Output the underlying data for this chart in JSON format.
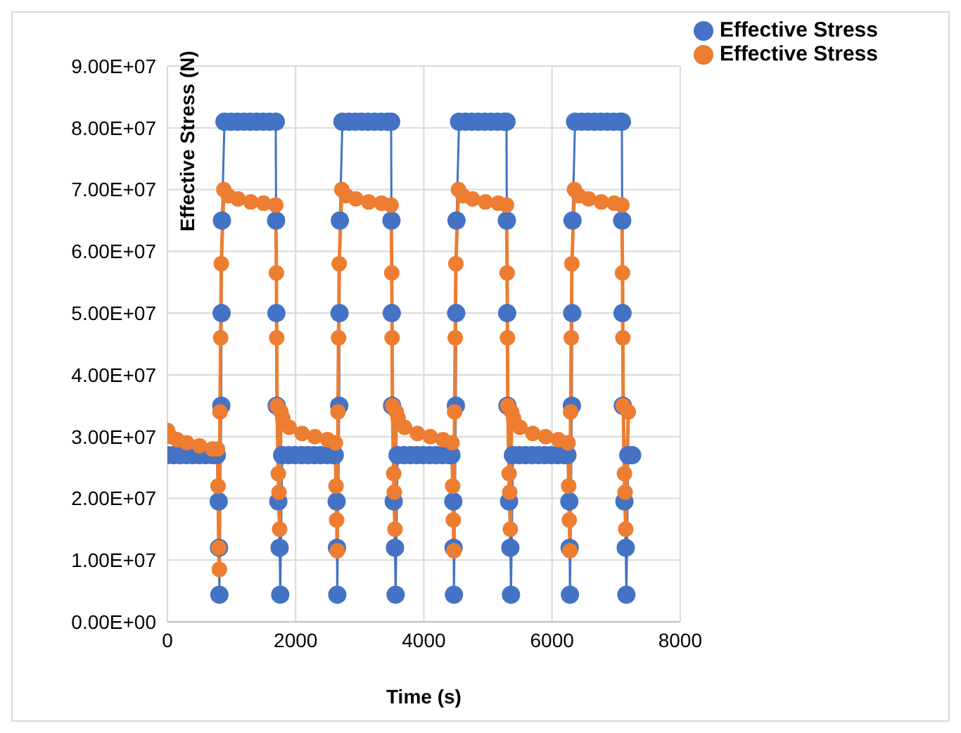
{
  "chart_data": {
    "type": "line",
    "xlabel": "Time (s)",
    "ylabel": "Effective Stress (N)",
    "xlim": [
      0,
      8000
    ],
    "xticks": [
      0,
      2000,
      4000,
      6000,
      8000
    ],
    "ylim": [
      0,
      90000000
    ],
    "yticks": [
      {
        "value": 0,
        "label": "0.00E+00"
      },
      {
        "value": 10000000,
        "label": "1.00E+07"
      },
      {
        "value": 20000000,
        "label": "2.00E+07"
      },
      {
        "value": 30000000,
        "label": "3.00E+07"
      },
      {
        "value": 40000000,
        "label": "4.00E+07"
      },
      {
        "value": 50000000,
        "label": "5.00E+07"
      },
      {
        "value": 60000000,
        "label": "6.00E+07"
      },
      {
        "value": 70000000,
        "label": "7.00E+07"
      },
      {
        "value": 80000000,
        "label": "8.00E+07"
      },
      {
        "value": 90000000,
        "label": "9.00E+07"
      }
    ],
    "grid": true,
    "legend": "top right",
    "marker": "circle",
    "line_style": "solid",
    "series": [
      {
        "name": "Effective Stress",
        "color": "#4472c4",
        "x": [
          0,
          100,
          200,
          300,
          400,
          500,
          600,
          700,
          770,
          800,
          805,
          810,
          840,
          845,
          850,
          890,
          990,
          1090,
          1190,
          1290,
          1390,
          1490,
          1590,
          1690,
          1695,
          1700,
          1705,
          1730,
          1750,
          1760,
          1790,
          1890,
          1990,
          2090,
          2190,
          2290,
          2390,
          2490,
          2590,
          2610,
          2640,
          2645,
          2650,
          2680,
          2685,
          2690,
          2730,
          2830,
          2930,
          3030,
          3130,
          3230,
          3330,
          3430,
          3490,
          3495,
          3500,
          3505,
          3530,
          3550,
          3560,
          3590,
          3690,
          3790,
          3890,
          3990,
          4090,
          4190,
          4290,
          4390,
          4430,
          4460,
          4465,
          4470,
          4500,
          4505,
          4510,
          4550,
          4650,
          4750,
          4850,
          4950,
          5050,
          5150,
          5250,
          5290,
          5295,
          5300,
          5305,
          5330,
          5350,
          5360,
          5390,
          5490,
          5590,
          5690,
          5790,
          5890,
          5990,
          6090,
          6190,
          6240,
          6270,
          6275,
          6280,
          6310,
          6315,
          6320,
          6360,
          6460,
          6560,
          6660,
          6760,
          6860,
          6960,
          7060,
          7090,
          7095,
          7100,
          7105,
          7130,
          7150,
          7160,
          7190,
          7250
        ],
        "values": [
          27000000,
          27000000,
          27000000,
          27000000,
          27000000,
          27000000,
          27000000,
          27000000,
          27000000,
          19500000,
          12000000,
          4400000,
          35000000,
          50000000,
          65000000,
          81000000,
          81000000,
          81000000,
          81000000,
          81000000,
          81000000,
          81000000,
          81000000,
          81000000,
          65000000,
          50000000,
          35000000,
          19500000,
          12000000,
          4400000,
          27000000,
          27000000,
          27000000,
          27000000,
          27000000,
          27000000,
          27000000,
          27000000,
          27000000,
          27000000,
          19500000,
          12000000,
          4400000,
          35000000,
          50000000,
          65000000,
          81000000,
          81000000,
          81000000,
          81000000,
          81000000,
          81000000,
          81000000,
          81000000,
          81000000,
          65000000,
          50000000,
          35000000,
          19500000,
          12000000,
          4400000,
          27000000,
          27000000,
          27000000,
          27000000,
          27000000,
          27000000,
          27000000,
          27000000,
          27000000,
          27000000,
          19500000,
          12000000,
          4400000,
          35000000,
          50000000,
          65000000,
          81000000,
          81000000,
          81000000,
          81000000,
          81000000,
          81000000,
          81000000,
          81000000,
          81000000,
          65000000,
          50000000,
          35000000,
          19500000,
          12000000,
          4400000,
          27000000,
          27000000,
          27000000,
          27000000,
          27000000,
          27000000,
          27000000,
          27000000,
          27000000,
          27000000,
          19500000,
          12000000,
          4400000,
          35000000,
          50000000,
          65000000,
          81000000,
          81000000,
          81000000,
          81000000,
          81000000,
          81000000,
          81000000,
          81000000,
          81000000,
          65000000,
          50000000,
          35000000,
          19500000,
          12000000,
          4400000,
          27000000,
          27000000
        ]
      },
      {
        "name": "Effective Stress",
        "color": "#ed7d31",
        "x": [
          0,
          50,
          150,
          300,
          500,
          700,
          780,
          790,
          800,
          810,
          820,
          830,
          840,
          880,
          950,
          1100,
          1300,
          1500,
          1690,
          1700,
          1705,
          1710,
          1730,
          1740,
          1750,
          1770,
          1800,
          1900,
          2100,
          2300,
          2500,
          2620,
          2630,
          2640,
          2650,
          2660,
          2670,
          2680,
          2720,
          2790,
          2940,
          3140,
          3340,
          3490,
          3500,
          3505,
          3510,
          3530,
          3540,
          3550,
          3570,
          3600,
          3700,
          3900,
          4100,
          4300,
          4440,
          4450,
          4460,
          4470,
          4480,
          4490,
          4500,
          4540,
          4610,
          4760,
          4960,
          5160,
          5290,
          5300,
          5305,
          5310,
          5330,
          5340,
          5350,
          5370,
          5400,
          5500,
          5700,
          5900,
          6100,
          6250,
          6260,
          6270,
          6280,
          6290,
          6300,
          6310,
          6350,
          6420,
          6570,
          6770,
          6970,
          7090,
          7100,
          7105,
          7110,
          7130,
          7140,
          7150,
          7190
        ],
        "values": [
          31000000,
          30000000,
          29500000,
          29000000,
          28500000,
          28000000,
          28000000,
          22000000,
          12000000,
          8500000,
          34000000,
          46000000,
          58000000,
          70000000,
          69000000,
          68500000,
          68000000,
          67800000,
          67500000,
          56500000,
          46000000,
          35000000,
          24000000,
          21000000,
          15000000,
          34000000,
          33000000,
          31500000,
          30500000,
          30000000,
          29500000,
          29000000,
          22000000,
          16500000,
          11500000,
          34000000,
          46000000,
          58000000,
          70000000,
          69000000,
          68500000,
          68000000,
          67800000,
          67500000,
          56500000,
          46000000,
          35000000,
          24000000,
          21000000,
          15000000,
          34000000,
          33000000,
          31500000,
          30500000,
          30000000,
          29500000,
          29000000,
          22000000,
          16500000,
          11500000,
          34000000,
          46000000,
          58000000,
          70000000,
          69000000,
          68500000,
          68000000,
          67800000,
          67500000,
          56500000,
          46000000,
          35000000,
          24000000,
          21000000,
          15000000,
          34000000,
          33000000,
          31500000,
          30500000,
          30000000,
          29500000,
          29000000,
          22000000,
          16500000,
          11500000,
          34000000,
          46000000,
          58000000,
          70000000,
          69000000,
          68500000,
          68000000,
          67800000,
          67500000,
          56500000,
          46000000,
          35000000,
          24000000,
          21000000,
          15000000,
          34000000
        ]
      }
    ]
  }
}
